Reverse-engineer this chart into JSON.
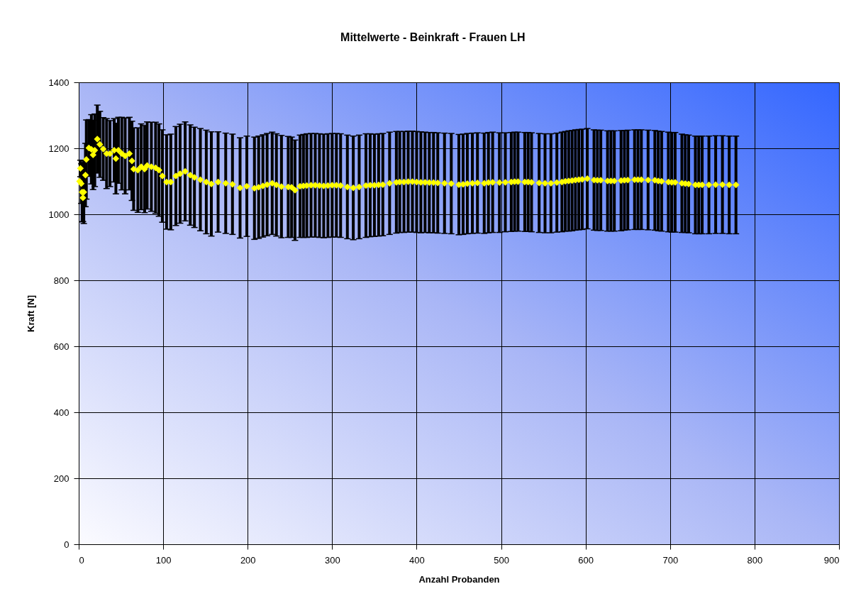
{
  "chart_data": {
    "type": "scatter",
    "title": "Mittelwerte - Beinkraft - Frauen LH",
    "xlabel": "Anzahl Probanden",
    "ylabel": "Kraft [N]",
    "x": [
      1,
      2,
      3,
      4,
      5,
      6,
      8,
      9,
      12,
      15,
      17,
      19,
      22,
      25,
      29,
      33,
      37,
      42,
      44,
      47,
      51,
      55,
      60,
      63,
      65,
      70,
      74,
      78,
      81,
      86,
      91,
      95,
      99,
      104,
      109,
      115,
      120,
      126,
      132,
      137,
      144,
      151,
      157,
      165,
      174,
      182,
      191,
      199,
      208,
      213,
      218,
      223,
      229,
      234,
      240,
      248,
      252,
      256,
      262,
      266,
      270,
      275,
      280,
      285,
      290,
      295,
      300,
      305,
      310,
      318,
      325,
      332,
      340,
      345,
      350,
      355,
      360,
      368,
      376,
      380,
      385,
      390,
      395,
      400,
      405,
      410,
      415,
      420,
      425,
      433,
      441,
      450,
      455,
      460,
      466,
      472,
      480,
      485,
      490,
      498,
      505,
      512,
      516,
      520,
      528,
      532,
      536,
      545,
      552,
      559,
      566,
      572,
      576,
      580,
      584,
      588,
      592,
      596,
      602,
      610,
      614,
      618,
      626,
      630,
      634,
      642,
      646,
      650,
      658,
      662,
      666,
      674,
      682,
      686,
      690,
      698,
      702,
      706,
      714,
      718,
      722,
      730,
      734,
      738,
      746,
      754,
      762,
      770,
      778
    ],
    "values": [
      1100,
      1139,
      1093,
      1067,
      1050,
      1067,
      1119,
      1166,
      1201,
      1197,
      1180,
      1194,
      1228,
      1212,
      1198,
      1184,
      1184,
      1194,
      1169,
      1194,
      1184,
      1177,
      1184,
      1162,
      1137,
      1134,
      1144,
      1137,
      1148,
      1144,
      1141,
      1134,
      1116,
      1098,
      1098,
      1116,
      1123,
      1130,
      1119,
      1112,
      1105,
      1098,
      1092,
      1098,
      1094,
      1091,
      1080,
      1085,
      1079,
      1082,
      1086,
      1090,
      1094,
      1089,
      1084,
      1083,
      1082,
      1073,
      1085,
      1086,
      1087,
      1088,
      1088,
      1087,
      1086,
      1087,
      1088,
      1088,
      1087,
      1083,
      1080,
      1083,
      1087,
      1088,
      1088,
      1089,
      1090,
      1094,
      1097,
      1098,
      1098,
      1099,
      1099,
      1098,
      1097,
      1097,
      1096,
      1096,
      1095,
      1094,
      1093,
      1090,
      1091,
      1093,
      1094,
      1095,
      1094,
      1096,
      1097,
      1096,
      1097,
      1098,
      1099,
      1099,
      1098,
      1098,
      1097,
      1095,
      1094,
      1094,
      1096,
      1098,
      1100,
      1101,
      1102,
      1104,
      1105,
      1106,
      1108,
      1104,
      1103,
      1103,
      1101,
      1101,
      1101,
      1102,
      1103,
      1104,
      1105,
      1105,
      1105,
      1104,
      1103,
      1101,
      1100,
      1098,
      1097,
      1097,
      1094,
      1093,
      1092,
      1089,
      1089,
      1089,
      1089,
      1090,
      1090,
      1089,
      1089
    ],
    "errors": [
      null,
      25,
      60,
      90,
      72,
      95,
      96,
      120,
      86,
      105,
      105,
      110,
      103,
      100,
      95,
      106,
      100,
      96,
      107,
      100,
      110,
      115,
      110,
      120,
      125,
      128,
      130,
      132,
      132,
      135,
      138,
      140,
      140,
      143,
      145,
      150,
      150,
      150,
      152,
      152,
      155,
      157,
      158,
      152,
      152,
      152,
      152,
      152,
      155,
      155,
      155,
      155,
      155,
      155,
      155,
      153,
      152,
      152,
      155,
      156,
      157,
      157,
      157,
      157,
      157,
      157,
      157,
      157,
      157,
      157,
      157,
      157,
      157,
      156,
      155,
      155,
      155,
      155,
      154,
      153,
      153,
      153,
      153,
      153,
      153,
      152,
      152,
      152,
      152,
      152,
      152,
      152,
      152,
      152,
      152,
      152,
      152,
      152,
      152,
      151,
      150,
      150,
      150,
      150,
      150,
      150,
      150,
      150,
      150,
      150,
      150,
      151,
      151,
      152,
      152,
      152,
      152,
      152,
      152,
      152,
      152,
      152,
      152,
      152,
      152,
      152,
      151,
      151,
      151,
      151,
      151,
      151,
      151,
      151,
      151,
      151,
      151,
      151,
      149,
      148,
      148,
      148,
      148,
      148,
      148,
      148,
      148,
      148,
      148
    ],
    "color": "#ffff00",
    "marker": "diamond",
    "xlim": [
      0,
      900
    ],
    "ylim": [
      0,
      1400
    ],
    "xticks": [
      0,
      100,
      200,
      300,
      400,
      500,
      600,
      700,
      800,
      900
    ],
    "yticks": [
      0,
      200,
      400,
      600,
      800,
      1000,
      1200,
      1400
    ],
    "grid": true
  }
}
